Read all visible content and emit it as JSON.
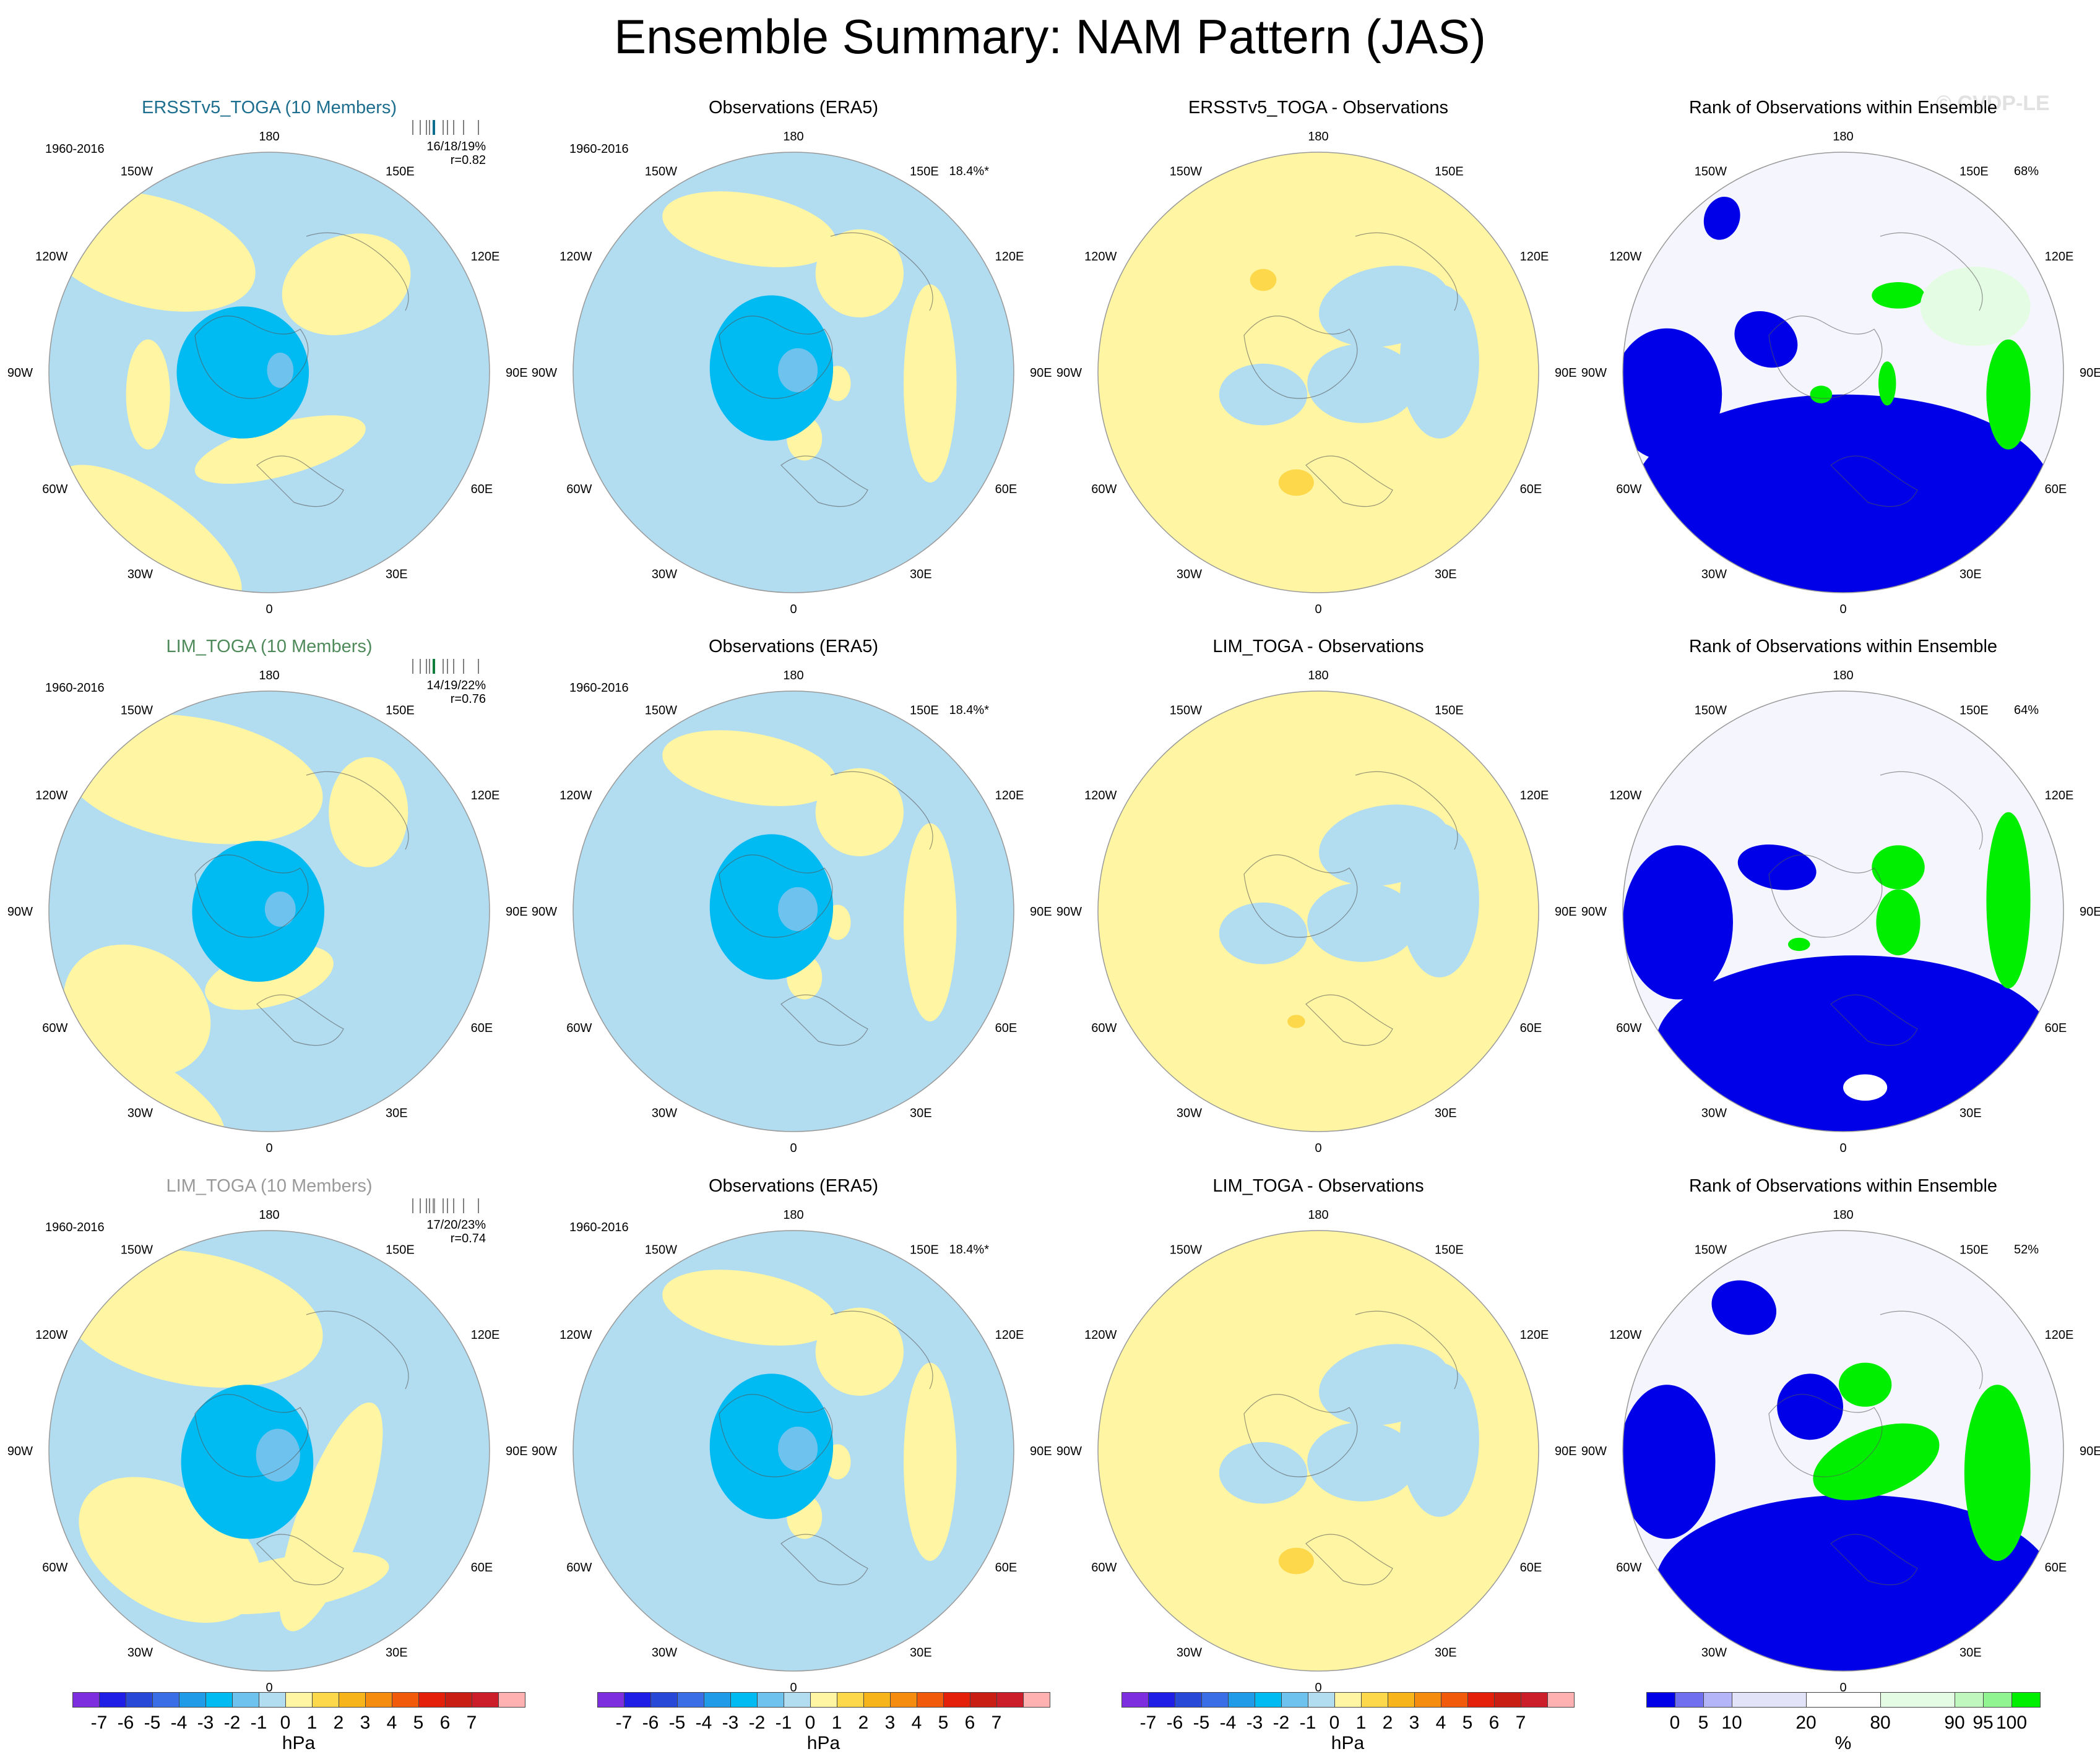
{
  "title": "Ensemble Summary: NAM Pattern (JAS)",
  "watermark": "© CVDP-LE",
  "meridian_labels": [
    "180",
    "150E",
    "120E",
    "90E",
    "60E",
    "30E",
    "0",
    "30W",
    "60W",
    "90W",
    "120W",
    "150W"
  ],
  "colors": {
    "ens_colors": [
      "#7d2fe0",
      "#1e1ee6",
      "#2848d8",
      "#3a6ee6",
      "#1f9be8",
      "#00baf2",
      "#6ec2ee",
      "#b2dcf0",
      "#fff5a3",
      "#fcd84a",
      "#f7b51b",
      "#f58c10",
      "#f05a0a",
      "#e41f0a",
      "#c81e14",
      "#cc1e2a",
      "#ffb0b0"
    ],
    "ens_tickbox_colors": [
      "#0a6f8f",
      "#0d7f3a",
      "#9b9b9b"
    ],
    "rank_colors": [
      "#0000e8",
      "#6f6ff0",
      "#b4b4f8",
      "#e2e2f8",
      "#ffffff",
      "#e4fbe4",
      "#bff7bf",
      "#90f590",
      "#00ee00"
    ]
  },
  "rows": [
    {
      "ens": {
        "title": "ERSST5_TOGA (10 Members)",
        "title_display": "ERSSTv5_TOGA (10 Members)",
        "title_color": "#1d6e8f",
        "period": "1960-2016",
        "stats": "16/18/19%",
        "r": "r=0.82"
      },
      "obs": {
        "title": "Observations (ERA5)",
        "period": "1960-2016",
        "pct": "18.4%*"
      },
      "diff": {
        "title": "ERSSTv5_TOGA - Observations"
      },
      "rank": {
        "title": "Rank of Observations within Ensemble",
        "pct": "68%"
      }
    },
    {
      "ens": {
        "title": "LIM_TOGA (10 Members)",
        "title_display": "LIM_TOGA (10 Members)",
        "title_color": "#4f8a5a",
        "period": "1960-2016",
        "stats": "14/19/22%",
        "r": "r=0.76"
      },
      "obs": {
        "title": "Observations (ERA5)",
        "period": "1960-2016",
        "pct": "18.4%*"
      },
      "diff": {
        "title": "LIM_TOGA - Observations"
      },
      "rank": {
        "title": "Rank of Observations within Ensemble",
        "pct": "64%"
      }
    },
    {
      "ens": {
        "title": "LIM_TOGA (10 Members)",
        "title_display": "LIM_TOGA (10 Members)",
        "title_color": "#9a9a9a",
        "period": "1960-2016",
        "stats": "17/20/23%",
        "r": "r=0.74"
      },
      "obs": {
        "title": "Observations (ERA5)",
        "period": "1960-2016",
        "pct": "18.4%*"
      },
      "diff": {
        "title": "LIM_TOGA - Observations"
      },
      "rank": {
        "title": "Rank of Observations within Ensemble",
        "pct": "52%"
      }
    }
  ],
  "colorbars": {
    "hpa_labels": [
      "-7",
      "-6",
      "-5",
      "-4",
      "-3",
      "-2",
      "-1",
      "0",
      "1",
      "2",
      "3",
      "4",
      "5",
      "6",
      "7"
    ],
    "hpa_units": "hPa",
    "rank_labels": [
      "0",
      "5",
      "10",
      "20",
      "80",
      "90",
      "95",
      "100"
    ],
    "rank_units": "%"
  }
}
